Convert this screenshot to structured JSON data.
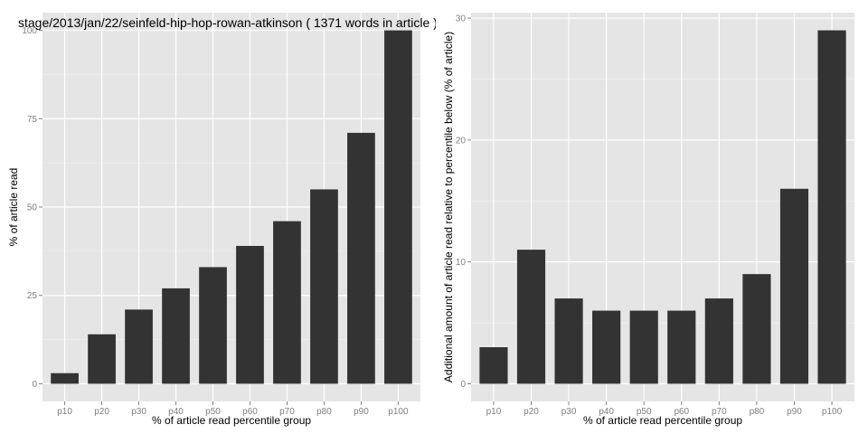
{
  "chart_data": [
    {
      "type": "bar",
      "title": "stage/2013/jan/22/seinfeld-hip-hop-rowan-atkinson ( 1371 words in article )",
      "xlabel": "% of article read percentile group",
      "ylabel": "% of article read",
      "categories": [
        "p10",
        "p20",
        "p30",
        "p40",
        "p50",
        "p60",
        "p70",
        "p80",
        "p90",
        "p100"
      ],
      "values": [
        3,
        14,
        21,
        27,
        33,
        39,
        46,
        55,
        71,
        100
      ],
      "ylim": [
        -5,
        105
      ],
      "yticks": [
        "0",
        "25",
        "50",
        "75",
        "100"
      ],
      "grid": true,
      "bar_color": "#333333",
      "panel_color": "#e5e5e5"
    },
    {
      "type": "bar",
      "title": "",
      "xlabel": "% of article read percentile group",
      "ylabel": "Additional amount of article read relative to percentile below (% of article)",
      "categories": [
        "p10",
        "p20",
        "p30",
        "p40",
        "p50",
        "p60",
        "p70",
        "p80",
        "p90",
        "p100"
      ],
      "values": [
        3,
        11,
        7,
        6,
        6,
        6,
        7,
        9,
        16,
        29
      ],
      "ylim": [
        -1.45,
        30.45
      ],
      "yticks": [
        "0",
        "10",
        "20",
        "30"
      ],
      "grid": true,
      "bar_color": "#333333",
      "panel_color": "#e5e5e5"
    }
  ]
}
